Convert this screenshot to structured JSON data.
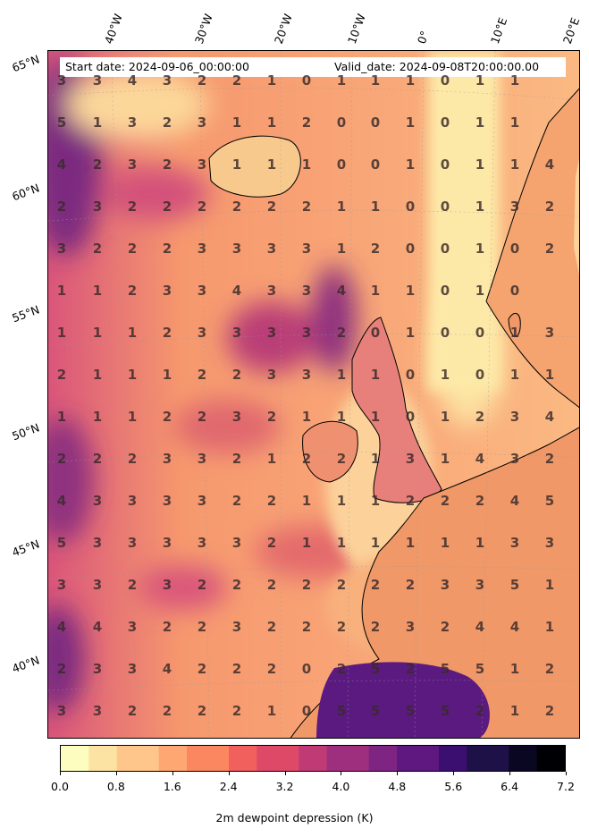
{
  "header": {
    "start_date": "Start date: 2024-09-06_00:00:00",
    "valid_date": "Valid_date: 2024-09-08T20:00:00.00"
  },
  "longitude_labels": [
    "40°W",
    "30°W",
    "20°W",
    "10°W",
    "0°",
    "10°E",
    "20°E"
  ],
  "latitude_labels": [
    "65°N",
    "60°N",
    "55°N",
    "50°N",
    "45°N",
    "40°N"
  ],
  "grid_values": [
    [
      "3",
      "3",
      "4",
      "3",
      "2",
      "2",
      "1",
      "0",
      "1",
      "1",
      "1",
      "0",
      "1",
      "1"
    ],
    [
      "5",
      "1",
      "3",
      "2",
      "3",
      "1",
      "1",
      "2",
      "0",
      "0",
      "1",
      "0",
      "1",
      "1"
    ],
    [
      "4",
      "2",
      "3",
      "2",
      "3",
      "1",
      "1",
      "1",
      "0",
      "0",
      "1",
      "0",
      "1",
      "1",
      "4"
    ],
    [
      "2",
      "3",
      "2",
      "2",
      "2",
      "2",
      "2",
      "2",
      "1",
      "1",
      "0",
      "0",
      "1",
      "3",
      "2"
    ],
    [
      "3",
      "2",
      "2",
      "2",
      "3",
      "3",
      "3",
      "3",
      "1",
      "2",
      "0",
      "0",
      "1",
      "0",
      "2"
    ],
    [
      "1",
      "1",
      "2",
      "3",
      "3",
      "4",
      "3",
      "3",
      "4",
      "1",
      "1",
      "0",
      "1",
      "0"
    ],
    [
      "1",
      "1",
      "1",
      "2",
      "3",
      "3",
      "3",
      "3",
      "2",
      "0",
      "1",
      "0",
      "0",
      "1",
      "3"
    ],
    [
      "2",
      "1",
      "1",
      "1",
      "2",
      "2",
      "3",
      "3",
      "1",
      "1",
      "0",
      "1",
      "0",
      "1",
      "1"
    ],
    [
      "1",
      "1",
      "1",
      "2",
      "2",
      "3",
      "2",
      "1",
      "1",
      "1",
      "0",
      "1",
      "2",
      "3",
      "4"
    ],
    [
      "2",
      "2",
      "2",
      "3",
      "3",
      "2",
      "1",
      "2",
      "2",
      "1",
      "3",
      "1",
      "4",
      "3",
      "2"
    ],
    [
      "4",
      "3",
      "3",
      "3",
      "3",
      "2",
      "2",
      "1",
      "1",
      "1",
      "2",
      "2",
      "2",
      "4",
      "5"
    ],
    [
      "5",
      "3",
      "3",
      "3",
      "3",
      "3",
      "2",
      "1",
      "1",
      "1",
      "1",
      "1",
      "1",
      "3",
      "3"
    ],
    [
      "3",
      "3",
      "2",
      "3",
      "2",
      "2",
      "2",
      "2",
      "2",
      "2",
      "2",
      "3",
      "3",
      "5",
      "1"
    ],
    [
      "4",
      "4",
      "3",
      "2",
      "2",
      "3",
      "2",
      "2",
      "2",
      "2",
      "3",
      "2",
      "4",
      "4",
      "1"
    ],
    [
      "2",
      "3",
      "3",
      "4",
      "2",
      "2",
      "2",
      "0",
      "2",
      "5",
      "2",
      "5",
      "5",
      "1",
      "2"
    ],
    [
      "3",
      "3",
      "2",
      "2",
      "2",
      "2",
      "1",
      "0",
      "5",
      "5",
      "5",
      "5",
      "2",
      "1",
      "2"
    ]
  ],
  "colorbar": {
    "label": "2m dewpoint depression (K)",
    "ticks": [
      "0.0",
      "0.8",
      "1.6",
      "2.4",
      "3.2",
      "4.0",
      "4.8",
      "5.6",
      "6.4",
      "7.2"
    ],
    "min": 0.0,
    "max": 7.2,
    "colormap": "magma_r",
    "colors": [
      "#fcfdbf",
      "#fde3a3",
      "#fec68a",
      "#fea772",
      "#fb8761",
      "#f1605d",
      "#de4968",
      "#c03a76",
      "#9e2f7f",
      "#7e2482",
      "#5f187f",
      "#3b0f70",
      "#1d1147",
      "#0a0722",
      "#000004"
    ]
  },
  "palette": {
    "sea_mid": "#f3a87f",
    "sea_warm": "#f58b68",
    "moist": "#c9467a",
    "very_moist": "#6a1f80",
    "dry": "#fde9a7",
    "coastline": "#000000"
  }
}
